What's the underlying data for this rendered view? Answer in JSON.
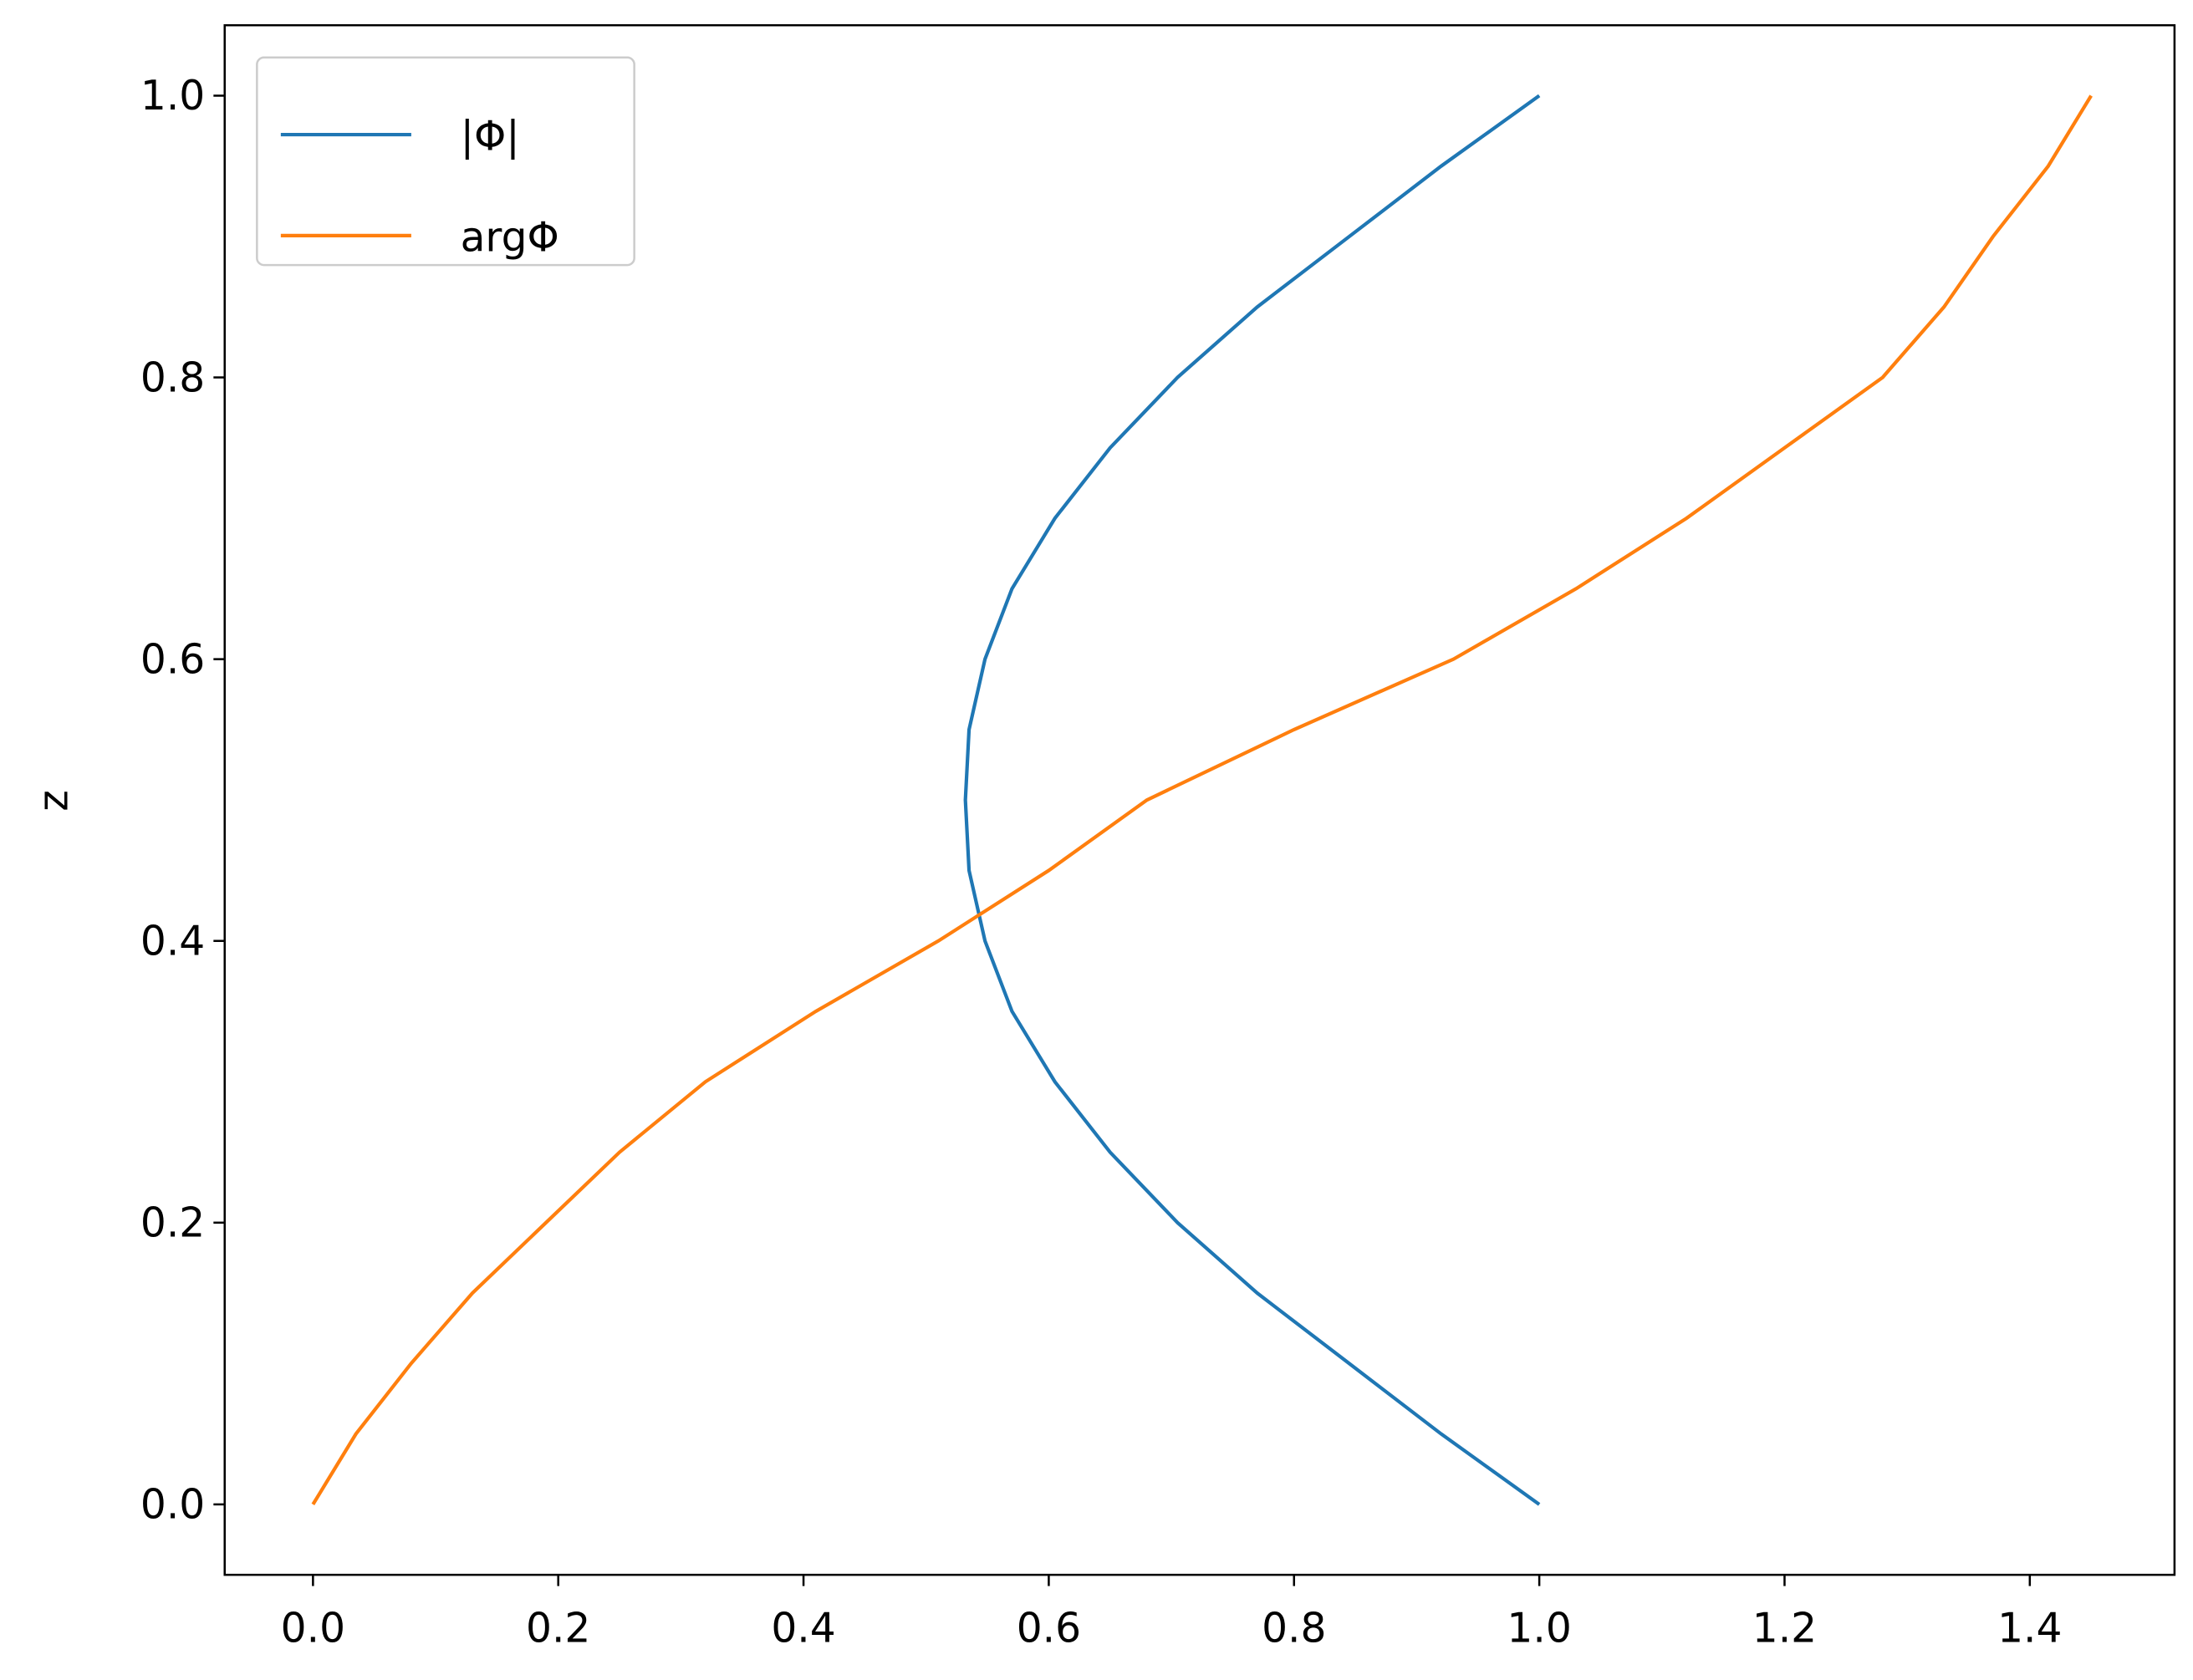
{
  "chart_data": {
    "type": "line",
    "ylabel": "z",
    "legend": "upper left",
    "grid": false,
    "xlim": [
      -0.072,
      1.518
    ],
    "ylim": [
      -0.05,
      1.05
    ],
    "xticks": [
      {
        "value": 0,
        "label": "0.0"
      },
      {
        "value": 0.2,
        "label": "0.2"
      },
      {
        "value": 0.4,
        "label": "0.4"
      },
      {
        "value": 0.6,
        "label": "0.6"
      },
      {
        "value": 0.8,
        "label": "0.8"
      },
      {
        "value": 1,
        "label": "1.0"
      },
      {
        "value": 1.2,
        "label": "1.2"
      },
      {
        "value": 1.4,
        "label": "1.4"
      }
    ],
    "yticks": [
      {
        "value": 0,
        "label": "0.0"
      },
      {
        "value": 0.2,
        "label": "0.2"
      },
      {
        "value": 0.4,
        "label": "0.4"
      },
      {
        "value": 0.6,
        "label": "0.6"
      },
      {
        "value": 0.8,
        "label": "0.8"
      },
      {
        "value": 1,
        "label": "1.0"
      }
    ],
    "series": [
      {
        "name": "|Φ|",
        "color": "#1f77b4",
        "x": [
          1.0,
          0.92,
          0.845,
          0.77,
          0.705,
          0.65,
          0.605,
          0.57,
          0.548,
          0.535,
          0.532,
          0.535,
          0.548,
          0.57,
          0.605,
          0.65,
          0.705,
          0.77,
          0.845,
          0.92,
          1.0
        ],
        "y": [
          0,
          0.05,
          0.1,
          0.15,
          0.2,
          0.25,
          0.3,
          0.35,
          0.4,
          0.45,
          0.5,
          0.55,
          0.6,
          0.65,
          0.7,
          0.75,
          0.8,
          0.85,
          0.9,
          0.95,
          1.0
        ]
      },
      {
        "name": "argΦ",
        "color": "#ff7f0e",
        "x": [
          0,
          0.035,
          0.08,
          0.13,
          0.19,
          0.25,
          0.32,
          0.41,
          0.51,
          0.6,
          0.68,
          0.8,
          0.93,
          1.03,
          1.12,
          1.2,
          1.28,
          1.33,
          1.37,
          1.415,
          1.45
        ],
        "y": [
          0,
          0.05,
          0.1,
          0.15,
          0.2,
          0.25,
          0.3,
          0.35,
          0.4,
          0.45,
          0.5,
          0.55,
          0.6,
          0.65,
          0.7,
          0.75,
          0.8,
          0.85,
          0.9,
          0.95,
          1.0
        ]
      }
    ]
  }
}
